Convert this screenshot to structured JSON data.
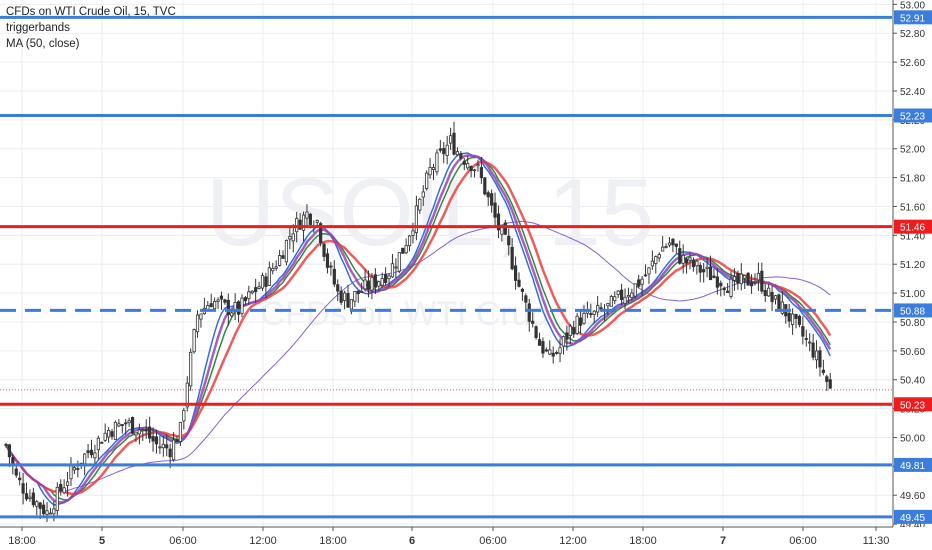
{
  "legend": {
    "title": "CFDs on WTI Crude Oil, 15, TVC",
    "indicator_1": "triggerbands",
    "indicator_2": "MA (50, close)"
  },
  "watermark": {
    "symbol": "USOIL, 15",
    "description": "CFDs on WTI Crude Oil"
  },
  "chart_data": {
    "type": "candlestick",
    "ylim": [
      49.38,
      53.03
    ],
    "y_ticks": [
      "53.00",
      "52.80",
      "52.60",
      "52.40",
      "52.20",
      "52.00",
      "51.80",
      "51.60",
      "51.40",
      "51.20",
      "51.00",
      "50.80",
      "50.60",
      "50.40",
      "50.20",
      "50.00",
      "49.80",
      "49.60",
      "49.40"
    ],
    "x_ticks": [
      "18:00",
      "5",
      "06:00",
      "12:00",
      "18:00",
      "6",
      "06:00",
      "12:00",
      "18:00",
      "7",
      "06:00",
      "11:30"
    ],
    "grid": true,
    "levels": [
      {
        "value": 52.91,
        "label": "52.91",
        "color": "#3b7ddd",
        "style": "solid"
      },
      {
        "value": 52.23,
        "label": "52.23",
        "color": "#3b7ddd",
        "style": "solid"
      },
      {
        "value": 51.46,
        "label": "51.46",
        "color": "#ee1c1c",
        "style": "solid"
      },
      {
        "value": 50.88,
        "label": "50.88",
        "color": "#3b7ddd",
        "style": "dashed"
      },
      {
        "value": 50.23,
        "label": "50.23",
        "color": "#ee1c1c",
        "style": "solid"
      },
      {
        "value": 49.81,
        "label": "49.81",
        "color": "#3b7ddd",
        "style": "solid"
      },
      {
        "value": 49.45,
        "label": "49.45",
        "color": "#3b7ddd",
        "style": "solid"
      }
    ],
    "last_price": 50.33,
    "close_points": [
      [
        0,
        49.95
      ],
      [
        3,
        49.72
      ],
      [
        6,
        49.62
      ],
      [
        9,
        49.55
      ],
      [
        12,
        49.48
      ],
      [
        15,
        49.6
      ],
      [
        18,
        49.72
      ],
      [
        22,
        49.85
      ],
      [
        26,
        49.95
      ],
      [
        30,
        50.05
      ],
      [
        35,
        50.1
      ],
      [
        40,
        50.05
      ],
      [
        44,
        49.95
      ],
      [
        48,
        49.92
      ],
      [
        51,
        50.05
      ],
      [
        53,
        50.4
      ],
      [
        56,
        50.85
      ],
      [
        60,
        50.95
      ],
      [
        64,
        50.9
      ],
      [
        68,
        50.88
      ],
      [
        72,
        51.0
      ],
      [
        76,
        51.1
      ],
      [
        80,
        51.25
      ],
      [
        84,
        51.45
      ],
      [
        88,
        51.55
      ],
      [
        91,
        51.5
      ],
      [
        94,
        51.2
      ],
      [
        97,
        51.0
      ],
      [
        100,
        50.95
      ],
      [
        104,
        51.02
      ],
      [
        108,
        51.08
      ],
      [
        112,
        51.15
      ],
      [
        116,
        51.3
      ],
      [
        120,
        51.55
      ],
      [
        124,
        51.85
      ],
      [
        127,
        51.95
      ],
      [
        130,
        52.05
      ],
      [
        133,
        51.95
      ],
      [
        136,
        51.9
      ],
      [
        138,
        51.85
      ],
      [
        141,
        51.65
      ],
      [
        144,
        51.45
      ],
      [
        147,
        51.3
      ],
      [
        150,
        51.05
      ],
      [
        153,
        50.85
      ],
      [
        156,
        50.65
      ],
      [
        159,
        50.55
      ],
      [
        162,
        50.62
      ],
      [
        165,
        50.75
      ],
      [
        168,
        50.82
      ],
      [
        172,
        50.85
      ],
      [
        176,
        50.9
      ],
      [
        180,
        50.98
      ],
      [
        184,
        51.05
      ],
      [
        188,
        51.15
      ],
      [
        191,
        51.3
      ],
      [
        194,
        51.35
      ],
      [
        197,
        51.25
      ],
      [
        200,
        51.2
      ],
      [
        204,
        51.15
      ],
      [
        208,
        51.1
      ],
      [
        212,
        51.05
      ],
      [
        216,
        51.08
      ],
      [
        220,
        51.1
      ],
      [
        224,
        50.95
      ],
      [
        227,
        50.9
      ],
      [
        230,
        50.8
      ],
      [
        233,
        50.7
      ],
      [
        236,
        50.6
      ],
      [
        239,
        50.45
      ],
      [
        241,
        50.33
      ]
    ],
    "bar_count": 242,
    "vertical_range": "2 sessions shown + partial"
  }
}
